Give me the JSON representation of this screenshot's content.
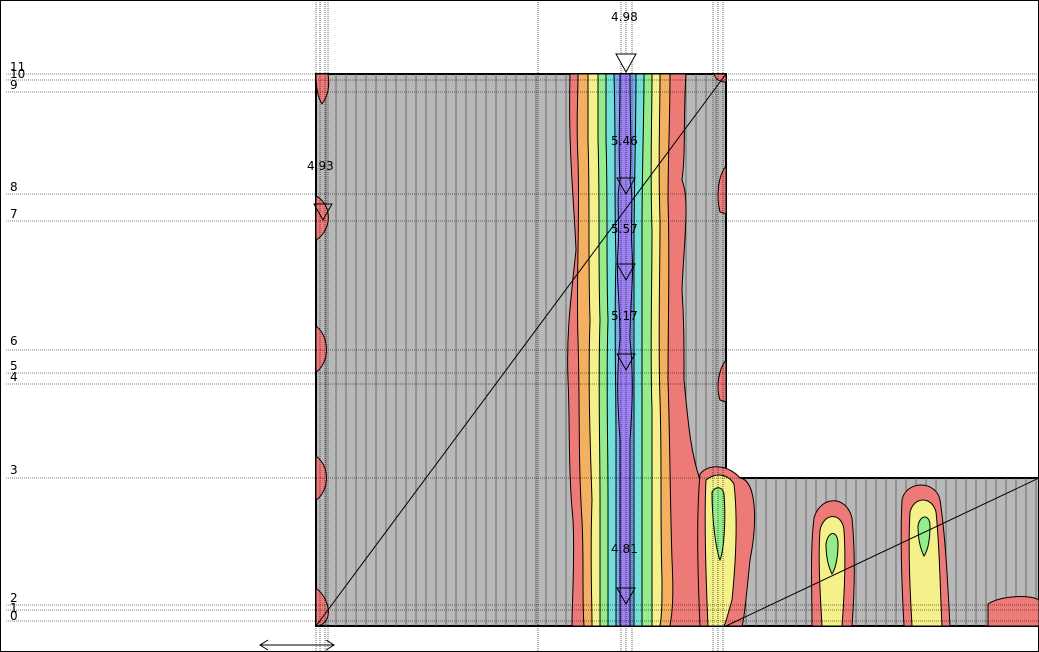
{
  "diagram": {
    "level_labels": [
      "0",
      "1",
      "2",
      "3",
      "4",
      "5",
      "6",
      "7",
      "8",
      "9",
      "10",
      "11"
    ],
    "value_labels": [
      "4.98",
      "5.46",
      "5.57",
      "5.17",
      "4.81",
      "4.93"
    ],
    "colors": {
      "background": "#ffffff",
      "slab": "#b8b8b8",
      "rib_line": "#6e6e6e",
      "grid_line": "#000000",
      "contour_red": "#ee7a78",
      "contour_orange": "#f3b060",
      "contour_yellow": "#f4f08a",
      "contour_green": "#94ec8a",
      "contour_cyan": "#72e0d8",
      "contour_blue": "#78a8f0",
      "contour_violet": "#9a80f0"
    }
  }
}
